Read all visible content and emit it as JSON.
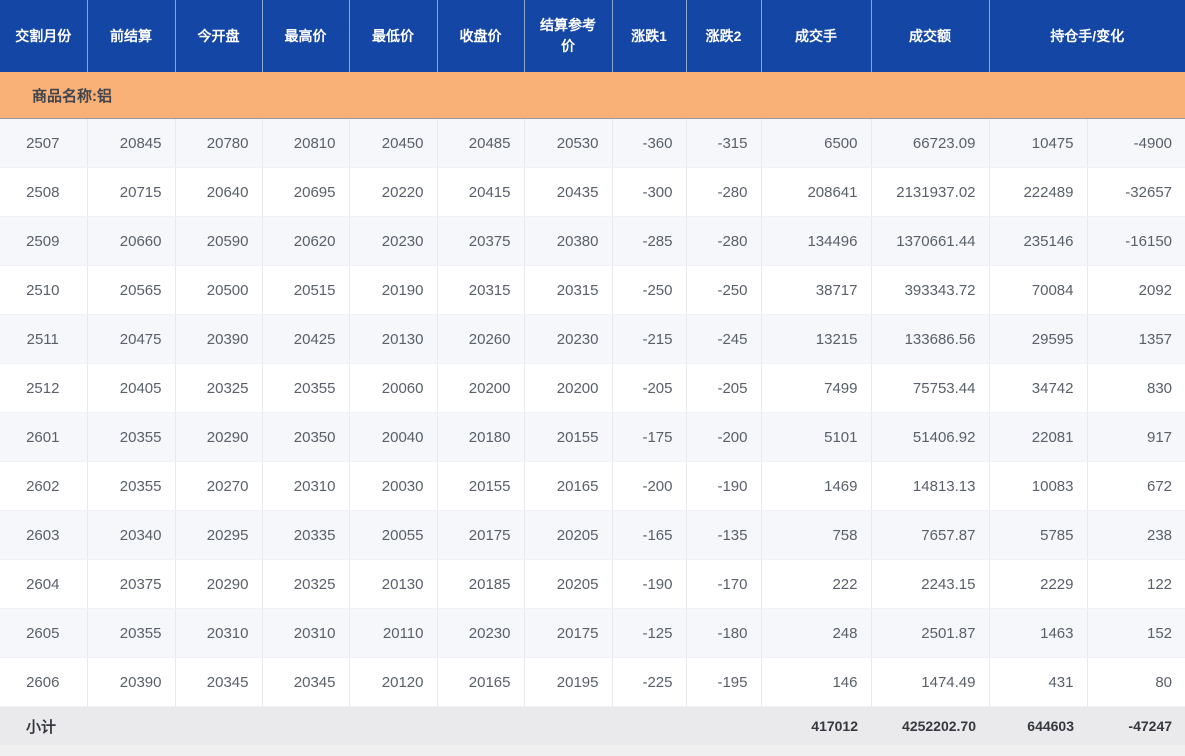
{
  "table": {
    "headers": [
      "交割月份",
      "前结算",
      "今开盘",
      "最高价",
      "最低价",
      "收盘价",
      "结算参考价",
      "涨跌1",
      "涨跌2",
      "成交手",
      "成交额",
      "持仓手/变化"
    ],
    "product_label": "商品名称:铝",
    "rows": [
      [
        "2507",
        "20845",
        "20780",
        "20810",
        "20450",
        "20485",
        "20530",
        "-360",
        "-315",
        "6500",
        "66723.09",
        "10475",
        "-4900"
      ],
      [
        "2508",
        "20715",
        "20640",
        "20695",
        "20220",
        "20415",
        "20435",
        "-300",
        "-280",
        "208641",
        "2131937.02",
        "222489",
        "-32657"
      ],
      [
        "2509",
        "20660",
        "20590",
        "20620",
        "20230",
        "20375",
        "20380",
        "-285",
        "-280",
        "134496",
        "1370661.44",
        "235146",
        "-16150"
      ],
      [
        "2510",
        "20565",
        "20500",
        "20515",
        "20190",
        "20315",
        "20315",
        "-250",
        "-250",
        "38717",
        "393343.72",
        "70084",
        "2092"
      ],
      [
        "2511",
        "20475",
        "20390",
        "20425",
        "20130",
        "20260",
        "20230",
        "-215",
        "-245",
        "13215",
        "133686.56",
        "29595",
        "1357"
      ],
      [
        "2512",
        "20405",
        "20325",
        "20355",
        "20060",
        "20200",
        "20200",
        "-205",
        "-205",
        "7499",
        "75753.44",
        "34742",
        "830"
      ],
      [
        "2601",
        "20355",
        "20290",
        "20350",
        "20040",
        "20180",
        "20155",
        "-175",
        "-200",
        "5101",
        "51406.92",
        "22081",
        "917"
      ],
      [
        "2602",
        "20355",
        "20270",
        "20310",
        "20030",
        "20155",
        "20165",
        "-200",
        "-190",
        "1469",
        "14813.13",
        "10083",
        "672"
      ],
      [
        "2603",
        "20340",
        "20295",
        "20335",
        "20055",
        "20175",
        "20205",
        "-165",
        "-135",
        "758",
        "7657.87",
        "5785",
        "238"
      ],
      [
        "2604",
        "20375",
        "20290",
        "20325",
        "20130",
        "20185",
        "20205",
        "-190",
        "-170",
        "222",
        "2243.15",
        "2229",
        "122"
      ],
      [
        "2605",
        "20355",
        "20310",
        "20310",
        "20110",
        "20230",
        "20175",
        "-125",
        "-180",
        "248",
        "2501.87",
        "1463",
        "152"
      ],
      [
        "2606",
        "20390",
        "20345",
        "20345",
        "20120",
        "20165",
        "20195",
        "-225",
        "-195",
        "146",
        "1474.49",
        "431",
        "80"
      ]
    ],
    "subtotal": {
      "label": "小计",
      "volume": "417012",
      "turnover": "4252202.70",
      "open_interest": "644603",
      "oi_change": "-47247"
    }
  },
  "colors": {
    "header_bg": "#1446a5",
    "product_bg": "#fab178",
    "row_alt_bg": "#f5f7fa",
    "footer_bg": "#eaeaec"
  }
}
